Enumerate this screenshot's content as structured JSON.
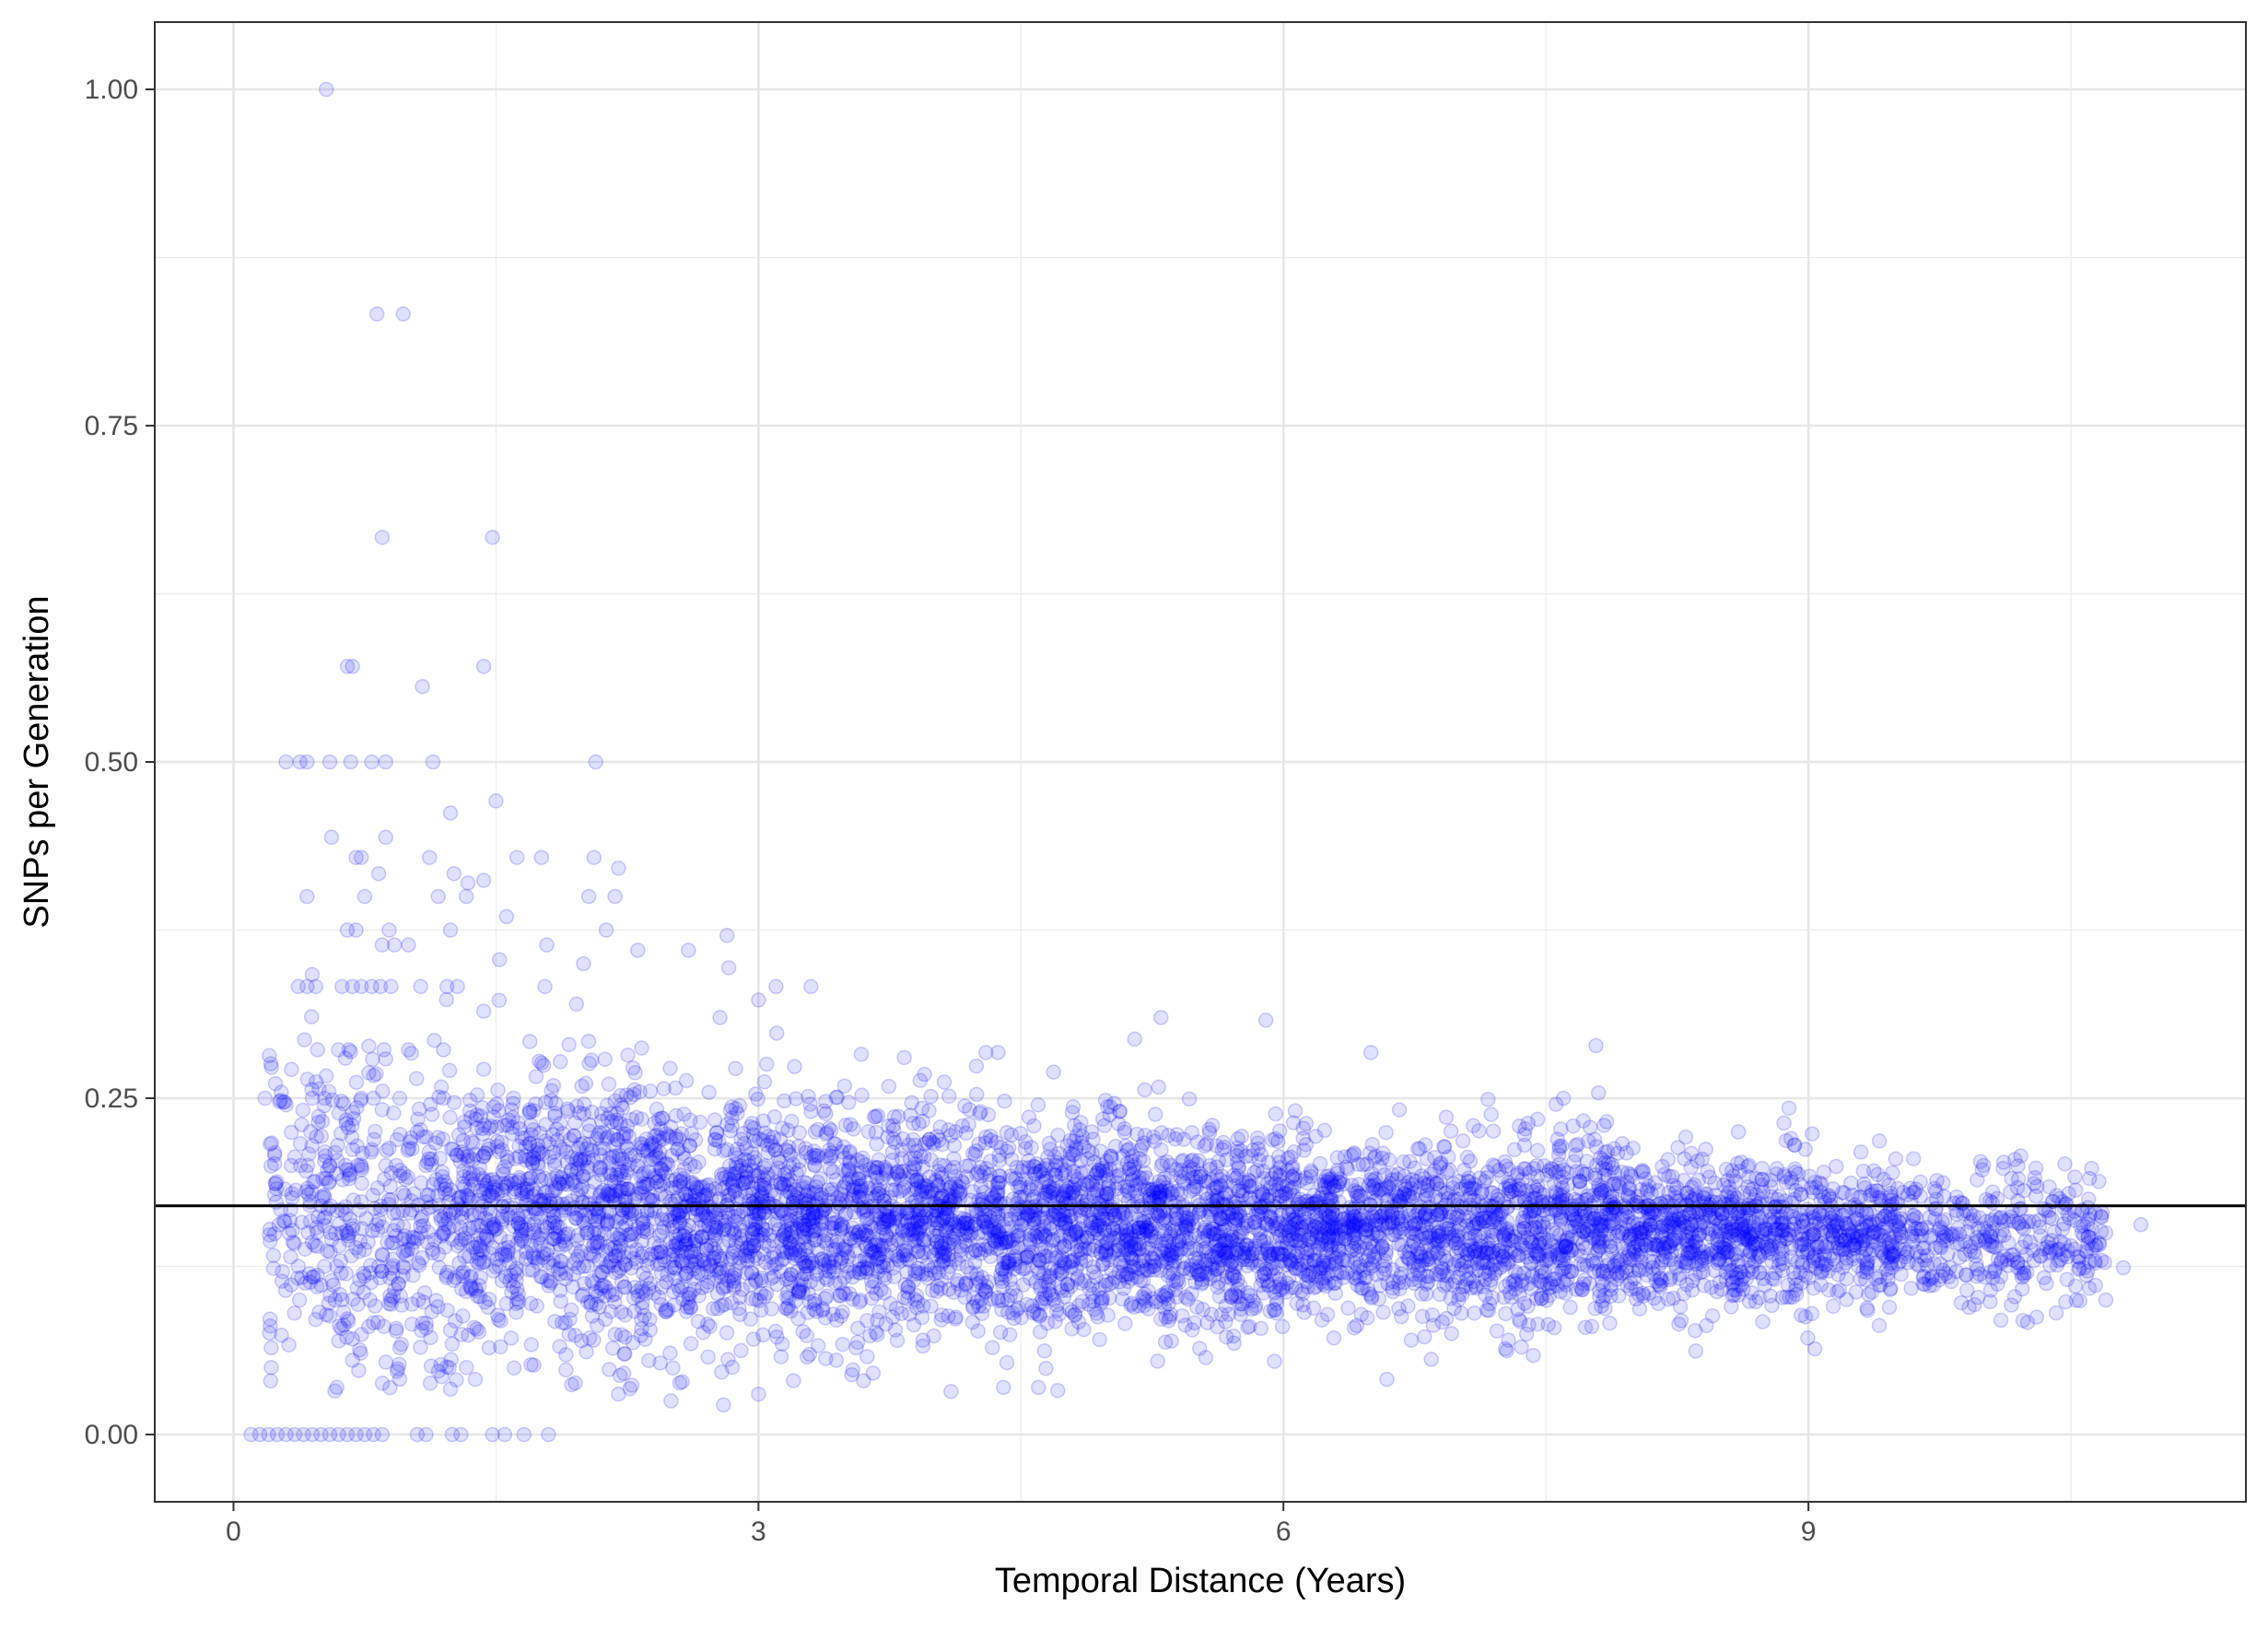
{
  "chart_data": {
    "type": "scatter",
    "title": "",
    "xlabel": "Temporal Distance (Years)",
    "ylabel": "SNPs per Generation",
    "xlim": [
      -0.45,
      11.5
    ],
    "ylim": [
      -0.05,
      1.05
    ],
    "x_ticks": [
      0,
      3,
      6,
      9
    ],
    "x_tick_labels": [
      "0",
      "3",
      "6",
      "9"
    ],
    "y_ticks": [
      0,
      0.25,
      0.5,
      0.75,
      1
    ],
    "y_tick_labels": [
      "0.00",
      "0.25",
      "0.50",
      "0.75",
      "1.00"
    ],
    "grid": true,
    "legend": "none",
    "point_color": "#0000ff",
    "point_opacity": 0.12,
    "reference_line": {
      "orientation": "horizontal",
      "y": 0.17,
      "color": "#000000"
    },
    "series": [
      {
        "points": [
          [
            0.53,
            1.0
          ],
          [
            0.82,
            0.833
          ],
          [
            0.97,
            0.833
          ],
          [
            0.85,
            0.667
          ],
          [
            1.48,
            0.667
          ],
          [
            0.65,
            0.571
          ],
          [
            0.68,
            0.571
          ],
          [
            1.43,
            0.571
          ],
          [
            1.08,
            0.556
          ],
          [
            0.3,
            0.5
          ],
          [
            0.38,
            0.5
          ],
          [
            0.42,
            0.5
          ],
          [
            0.55,
            0.5
          ],
          [
            0.67,
            0.5
          ],
          [
            0.79,
            0.5
          ],
          [
            0.87,
            0.5
          ],
          [
            1.14,
            0.5
          ],
          [
            2.07,
            0.5
          ],
          [
            1.5,
            0.471
          ],
          [
            1.24,
            0.462
          ],
          [
            0.56,
            0.444
          ],
          [
            0.87,
            0.444
          ],
          [
            0.7,
            0.429
          ],
          [
            1.12,
            0.429
          ],
          [
            1.62,
            0.429
          ],
          [
            1.76,
            0.429
          ],
          [
            2.06,
            0.429
          ],
          [
            0.73,
            0.429
          ],
          [
            1.26,
            0.417
          ],
          [
            2.2,
            0.421
          ],
          [
            0.83,
            0.417
          ],
          [
            1.43,
            0.412
          ],
          [
            1.34,
            0.41
          ],
          [
            0.42,
            0.4
          ],
          [
            0.75,
            0.4
          ],
          [
            1.17,
            0.4
          ],
          [
            1.33,
            0.4
          ],
          [
            2.03,
            0.4
          ],
          [
            2.18,
            0.4
          ],
          [
            1.56,
            0.385
          ],
          [
            0.65,
            0.375
          ],
          [
            0.7,
            0.375
          ],
          [
            0.89,
            0.375
          ],
          [
            1.24,
            0.375
          ],
          [
            2.13,
            0.375
          ],
          [
            2.82,
            0.371
          ],
          [
            0.85,
            0.364
          ],
          [
            0.92,
            0.364
          ],
          [
            1.0,
            0.364
          ],
          [
            1.79,
            0.364
          ],
          [
            2.31,
            0.36
          ],
          [
            2.6,
            0.36
          ],
          [
            1.52,
            0.353
          ],
          [
            2.0,
            0.35
          ],
          [
            2.83,
            0.347
          ],
          [
            0.37,
            0.333
          ],
          [
            0.42,
            0.333
          ],
          [
            0.47,
            0.333
          ],
          [
            0.62,
            0.333
          ],
          [
            0.68,
            0.333
          ],
          [
            0.73,
            0.333
          ],
          [
            0.79,
            0.333
          ],
          [
            0.84,
            0.333
          ],
          [
            0.9,
            0.333
          ],
          [
            1.07,
            0.333
          ],
          [
            1.22,
            0.333
          ],
          [
            1.28,
            0.333
          ],
          [
            1.78,
            0.333
          ],
          [
            3.1,
            0.333
          ],
          [
            3.3,
            0.333
          ],
          [
            2.78,
            0.31
          ],
          [
            5.3,
            0.31
          ],
          [
            5.9,
            0.308
          ],
          [
            1.96,
            0.32
          ],
          [
            3.0,
            0.323
          ],
          [
            0.48,
            0.286
          ],
          [
            0.6,
            0.286
          ],
          [
            0.66,
            0.286
          ],
          [
            0.86,
            0.286
          ],
          [
            1.0,
            0.286
          ],
          [
            1.2,
            0.286
          ],
          [
            4.3,
            0.284
          ],
          [
            6.5,
            0.284
          ],
          [
            5.15,
            0.294
          ],
          [
            0.18,
            0.25
          ],
          [
            0.45,
            0.25
          ],
          [
            0.52,
            0.25
          ],
          [
            0.73,
            0.25
          ],
          [
            0.8,
            0.25
          ],
          [
            0.95,
            0.25
          ],
          [
            1.2,
            0.25
          ],
          [
            1.6,
            0.25
          ],
          [
            7.8,
            0.254
          ],
          [
            7.6,
            0.25
          ],
          [
            0.33,
            0.2
          ],
          [
            0.55,
            0.2
          ],
          [
            0.64,
            0.2
          ],
          [
            0.71,
            0.2
          ],
          [
            0.87,
            0.2
          ],
          [
            0.93,
            0.2
          ],
          [
            1.1,
            0.2
          ],
          [
            0.27,
            0.167
          ],
          [
            0.62,
            0.167
          ],
          [
            0.72,
            0.167
          ],
          [
            0.84,
            0.167
          ],
          [
            1.02,
            0.167
          ],
          [
            0.34,
            0.143
          ],
          [
            0.45,
            0.143
          ],
          [
            0.77,
            0.143
          ],
          [
            0.88,
            0.143
          ],
          [
            1.03,
            0.143
          ],
          [
            0.37,
            0.125
          ],
          [
            0.52,
            0.125
          ],
          [
            0.59,
            0.125
          ],
          [
            0.83,
            0.125
          ],
          [
            0.97,
            0.125
          ],
          [
            0.5,
            0.111
          ],
          [
            0.57,
            0.111
          ],
          [
            0.78,
            0.1
          ],
          [
            0.9,
            0.1
          ],
          [
            0.49,
            0.091
          ],
          [
            0.63,
            0.091
          ],
          [
            0.8,
            0.083
          ],
          [
            0.93,
            0.077
          ],
          [
            0.68,
            0.071
          ],
          [
            0.96,
            0.067
          ],
          [
            0.72,
            0.063
          ],
          [
            0.1,
            0.0
          ],
          [
            0.15,
            0.0
          ],
          [
            0.2,
            0.0
          ],
          [
            0.25,
            0.0
          ],
          [
            0.3,
            0.0
          ],
          [
            0.35,
            0.0
          ],
          [
            0.4,
            0.0
          ],
          [
            0.45,
            0.0
          ],
          [
            0.5,
            0.0
          ],
          [
            0.55,
            0.0
          ],
          [
            0.6,
            0.0
          ],
          [
            0.65,
            0.0
          ],
          [
            0.7,
            0.0
          ],
          [
            0.75,
            0.0
          ],
          [
            0.8,
            0.0
          ],
          [
            0.85,
            0.0
          ],
          [
            1.05,
            0.0
          ],
          [
            1.1,
            0.0
          ],
          [
            1.25,
            0.0
          ],
          [
            1.3,
            0.0
          ],
          [
            1.48,
            0.0
          ],
          [
            1.55,
            0.0
          ],
          [
            1.66,
            0.0
          ],
          [
            1.8,
            0.0
          ],
          [
            1.7,
            0.052
          ],
          [
            1.9,
            0.048
          ],
          [
            2.2,
            0.03
          ],
          [
            2.5,
            0.025
          ],
          [
            2.8,
            0.022
          ],
          [
            3.0,
            0.03
          ],
          [
            3.2,
            0.04
          ],
          [
            3.6,
            0.04
          ],
          [
            4.1,
            0.032
          ],
          [
            4.4,
            0.035
          ],
          [
            4.6,
            0.035
          ],
          [
            10.9,
            0.156
          ],
          [
            10.7,
            0.1
          ],
          [
            10.6,
            0.16
          ],
          [
            10.8,
            0.124
          ],
          [
            10.3,
            0.198
          ],
          [
            10.2,
            0.19
          ],
          [
            10.1,
            0.085
          ],
          [
            9.6,
            0.205
          ],
          [
            9.3,
            0.21
          ],
          [
            8.6,
            0.225
          ],
          [
            8.9,
            0.22
          ]
        ],
        "cloud_bands": [
          {
            "x_range": [
              0.2,
              1.3
            ],
            "y_center": 0.165,
            "y_spread": 0.055,
            "count": 450
          },
          {
            "x_range": [
              1.3,
              2.5
            ],
            "y_center": 0.165,
            "y_spread": 0.05,
            "count": 900
          },
          {
            "x_range": [
              2.5,
              4.0
            ],
            "y_center": 0.158,
            "y_spread": 0.042,
            "count": 1200
          },
          {
            "x_range": [
              4.0,
              6.0
            ],
            "y_center": 0.155,
            "y_spread": 0.036,
            "count": 1600
          },
          {
            "x_range": [
              6.0,
              8.0
            ],
            "y_center": 0.152,
            "y_spread": 0.032,
            "count": 1400
          },
          {
            "x_range": [
              8.0,
              9.5
            ],
            "y_center": 0.15,
            "y_spread": 0.026,
            "count": 900
          },
          {
            "x_range": [
              9.5,
              10.7
            ],
            "y_center": 0.145,
            "y_spread": 0.025,
            "count": 350
          }
        ]
      }
    ]
  }
}
